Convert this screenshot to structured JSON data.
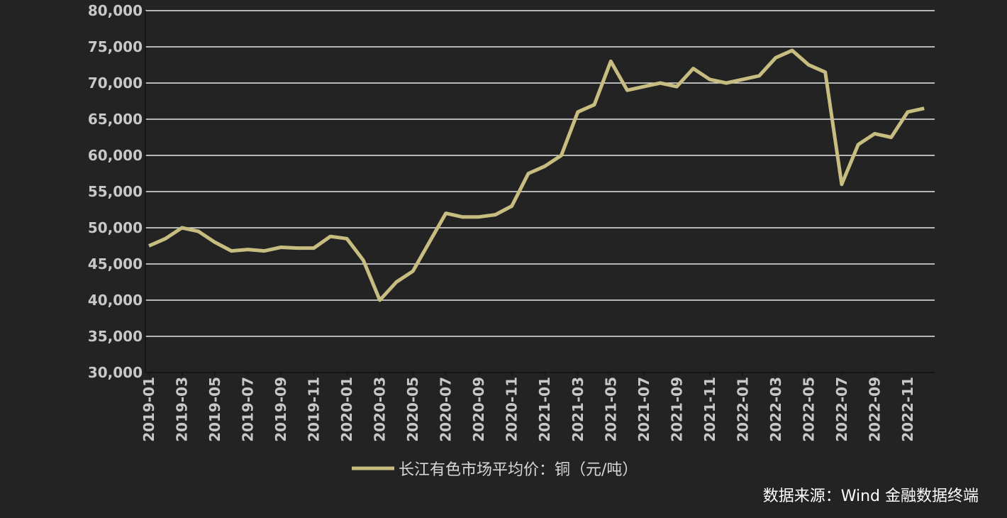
{
  "chart_data": {
    "type": "line",
    "x": [
      "2019-01",
      "2019-02",
      "2019-03",
      "2019-04",
      "2019-05",
      "2019-06",
      "2019-07",
      "2019-08",
      "2019-09",
      "2019-10",
      "2019-11",
      "2019-12",
      "2020-01",
      "2020-02",
      "2020-03",
      "2020-04",
      "2020-05",
      "2020-06",
      "2020-07",
      "2020-08",
      "2020-09",
      "2020-10",
      "2020-11",
      "2020-12",
      "2021-01",
      "2021-02",
      "2021-03",
      "2021-04",
      "2021-05",
      "2021-06",
      "2021-07",
      "2021-08",
      "2021-09",
      "2021-10",
      "2021-11",
      "2021-12",
      "2022-01",
      "2022-02",
      "2022-03",
      "2022-04",
      "2022-05",
      "2022-06",
      "2022-07",
      "2022-08",
      "2022-09",
      "2022-10",
      "2022-11",
      "2022-12"
    ],
    "series": [
      {
        "name": "长江有色市场平均价：铜（元/吨）",
        "color": "#c8bd80",
        "values": [
          47500,
          48500,
          50000,
          49500,
          48000,
          46800,
          47000,
          46800,
          47300,
          47200,
          47200,
          48800,
          48500,
          45500,
          40000,
          42500,
          44000,
          48000,
          52000,
          51500,
          51500,
          51800,
          53000,
          57500,
          58500,
          60000,
          66000,
          67000,
          73000,
          69000,
          69500,
          70000,
          69500,
          72000,
          70500,
          70000,
          70500,
          71000,
          73500,
          74500,
          72500,
          71500,
          56000,
          61500,
          63000,
          62500,
          66000,
          66500
        ]
      }
    ],
    "xticks": [
      "2019-01",
      "2019-03",
      "2019-05",
      "2019-07",
      "2019-09",
      "2019-11",
      "2020-01",
      "2020-03",
      "2020-05",
      "2020-07",
      "2020-09",
      "2020-11",
      "2021-01",
      "2021-03",
      "2021-05",
      "2021-07",
      "2021-09",
      "2021-11",
      "2022-01",
      "2022-03",
      "2022-05",
      "2022-07",
      "2022-09",
      "2022-11"
    ],
    "ylim": [
      30000,
      80000
    ],
    "yticks": [
      {
        "value": 30000,
        "label": "30,000"
      },
      {
        "value": 35000,
        "label": "35,000"
      },
      {
        "value": 40000,
        "label": "40,000"
      },
      {
        "value": 45000,
        "label": "45,000"
      },
      {
        "value": 50000,
        "label": "50,000"
      },
      {
        "value": 55000,
        "label": "55,000"
      },
      {
        "value": 60000,
        "label": "60,000"
      },
      {
        "value": 65000,
        "label": "65,000"
      },
      {
        "value": 70000,
        "label": "70,000"
      },
      {
        "value": 75000,
        "label": "75,000"
      },
      {
        "value": 80000,
        "label": "80,000"
      }
    ],
    "grid": true,
    "source": "数据来源：Wind 金融数据终端"
  }
}
